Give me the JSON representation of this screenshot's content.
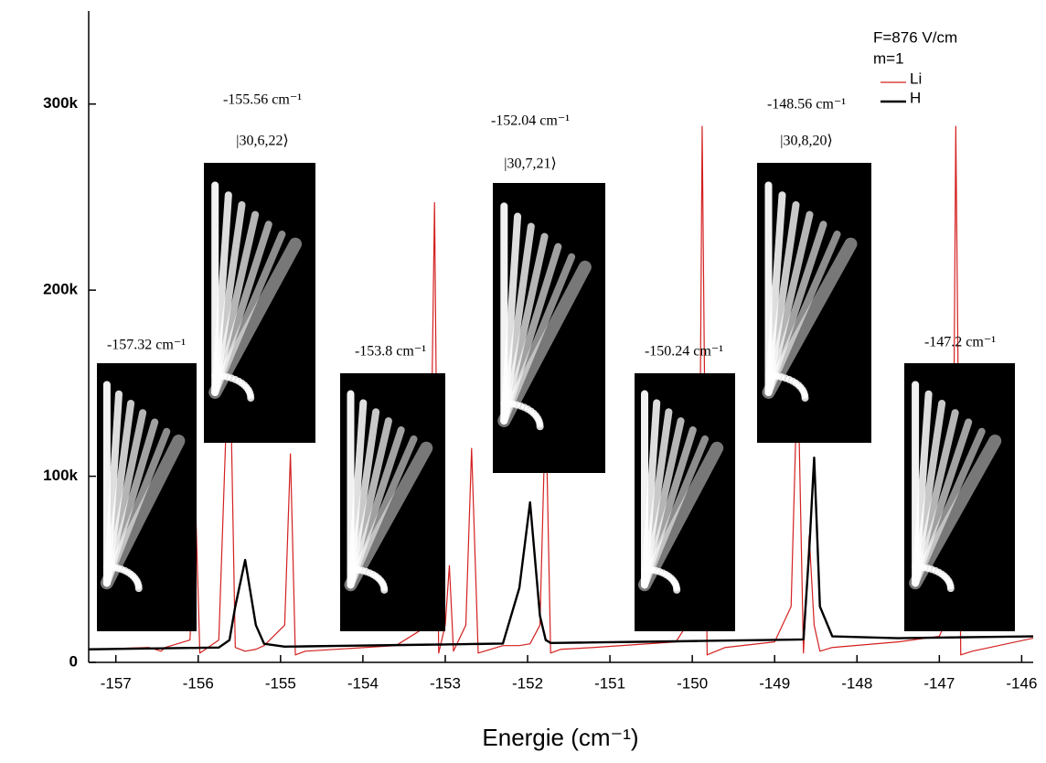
{
  "chart_data": {
    "type": "line",
    "xlabel": "Energie (cm⁻¹)",
    "x": [
      -157.33,
      -156.6,
      -156.45,
      -156.4,
      -156.1,
      -156.03,
      -155.98,
      -155.75,
      -155.62,
      -155.55,
      -155.43,
      -155.3,
      -155.2,
      -154.95,
      -154.88,
      -154.82,
      -154.7,
      -153.6,
      -153.2,
      -153.13,
      -153.08,
      -153.0,
      -152.95,
      -152.9,
      -152.75,
      -152.68,
      -152.6,
      -152.3,
      -152.1,
      -151.97,
      -151.85,
      -151.78,
      -151.72,
      -151.6,
      -151.2,
      -150.2,
      -149.92,
      -149.88,
      -149.82,
      -149.6,
      -149.0,
      -148.8,
      -148.72,
      -148.65,
      -148.58,
      -148.52,
      -148.45,
      -148.3,
      -147.5,
      -147.0,
      -146.84,
      -146.8,
      -146.74,
      -146.6,
      -145.86
    ],
    "series": [
      {
        "name": "Li",
        "color": "#d42020",
        "width": 1.2,
        "values": [
          7000,
          8000,
          6000,
          8000,
          12000,
          82000,
          5000,
          12000,
          180000,
          8000,
          6000,
          7000,
          9000,
          20000,
          112000,
          4000,
          6000,
          9000,
          20000,
          247000,
          5000,
          20000,
          52000,
          6000,
          20000,
          115000,
          5000,
          9000,
          9000,
          10000,
          20000,
          140000,
          5000,
          7000,
          8000,
          11000,
          30000,
          288000,
          4000,
          8000,
          11000,
          30000,
          160000,
          5000,
          68000,
          20000,
          6000,
          8000,
          11000,
          14000,
          30000,
          288000,
          4000,
          6000,
          13000
        ]
      },
      {
        "name": "H",
        "color": "#000000",
        "width": 2.4,
        "values": [
          7000,
          7450,
          7540,
          7570,
          7750,
          7790,
          7820,
          7960,
          12000,
          30000,
          55000,
          20000,
          10000,
          8450,
          8490,
          8530,
          8600,
          9280,
          9520,
          9560,
          9590,
          9640,
          9670,
          9700,
          9790,
          9840,
          9890,
          10100,
          40000,
          86000,
          25000,
          12000,
          10400,
          10500,
          10700,
          11300,
          11500,
          11540,
          11580,
          11700,
          12100,
          12200,
          12250,
          12300,
          60000,
          110000,
          30000,
          14000,
          13000,
          13300,
          13400,
          13420,
          13460,
          13550,
          14000
        ]
      }
    ],
    "xlim": [
      -157.33,
      -145.86
    ],
    "ylim": [
      0,
      350000
    ],
    "xticks": [
      -157,
      -156,
      -155,
      -154,
      -153,
      -152,
      -151,
      -150,
      -149,
      -148,
      -147,
      -146
    ],
    "yticks": [
      0,
      {
        "value": 100000,
        "label": "100k"
      },
      {
        "value": 200000,
        "label": "200k"
      },
      {
        "value": 300000,
        "label": "300k"
      }
    ],
    "legend_title": [
      "F=876 V/cm",
      "m=1"
    ],
    "legend": "upper right",
    "annotations": [
      {
        "text": "-157.32 cm⁻¹"
      },
      {
        "text": "-155.56 cm⁻¹",
        "state": "|30,6,22⟩"
      },
      {
        "text": "-153.8 cm⁻¹"
      },
      {
        "text": "-152.04 cm⁻¹",
        "state": "|30,7,21⟩"
      },
      {
        "text": "-150.24 cm⁻¹"
      },
      {
        "text": "-148.56 cm⁻¹",
        "state": "|30,8,20⟩"
      },
      {
        "text": "-147.2 cm⁻¹"
      }
    ]
  }
}
